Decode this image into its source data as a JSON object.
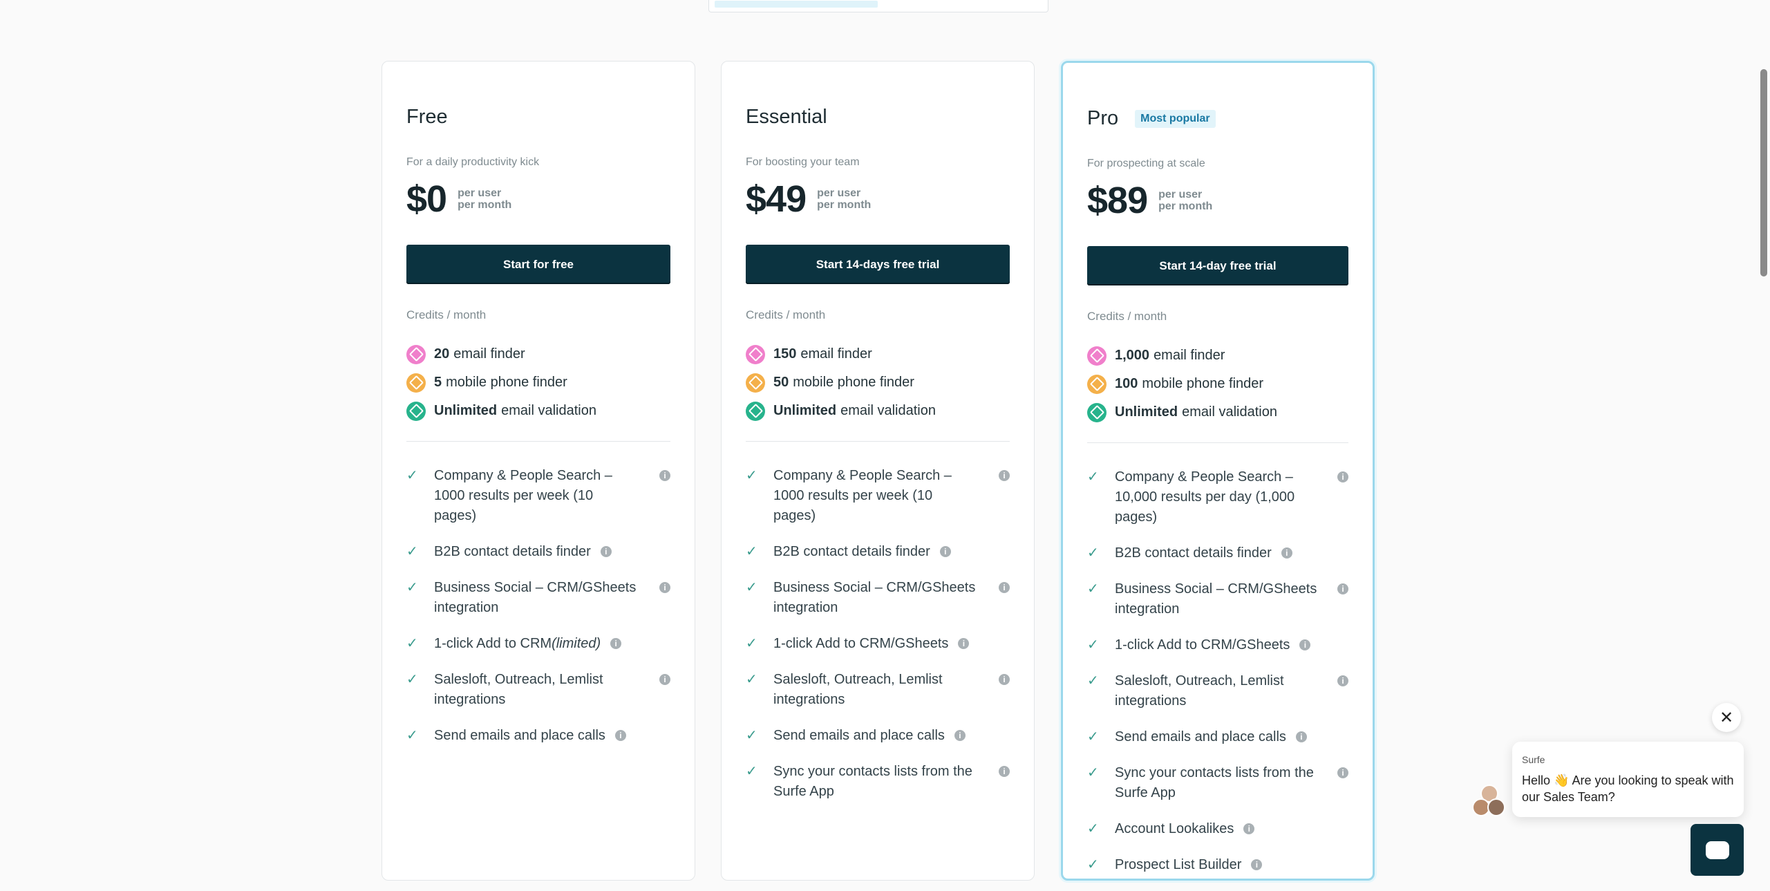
{
  "plans": [
    {
      "name": "Free",
      "tagline": "For a daily productivity kick",
      "price": "$0",
      "unit": [
        "per user",
        "per month"
      ],
      "cta": "Start for free",
      "credits_label": "Credits / month",
      "credits": [
        {
          "amount": "20",
          "label": "email finder"
        },
        {
          "amount": "5",
          "label": "mobile phone finder"
        },
        {
          "amount": "Unlimited",
          "label": "email validation"
        }
      ],
      "features": [
        {
          "text": "Company & People Search – 1000 results per week (10 pages)"
        },
        {
          "text": "B2B contact details finder"
        },
        {
          "text": "Business Social – CRM/GSheets integration"
        },
        {
          "text": "1-click Add to CRM",
          "emphasis": "(limited)"
        },
        {
          "text": "Salesloft, Outreach, Lemlist integrations"
        },
        {
          "text": "Send emails and place calls"
        }
      ]
    },
    {
      "name": "Essential",
      "tagline": "For boosting your team",
      "price": "$49",
      "unit": [
        "per user",
        "per month"
      ],
      "cta": "Start 14-days free trial",
      "credits_label": "Credits / month",
      "credits": [
        {
          "amount": "150",
          "label": "email finder"
        },
        {
          "amount": "50",
          "label": "mobile phone finder"
        },
        {
          "amount": "Unlimited",
          "label": "email validation"
        }
      ],
      "features": [
        {
          "text": "Company & People Search – 1000 results per week (10 pages)"
        },
        {
          "text": "B2B contact details finder"
        },
        {
          "text": "Business Social – CRM/GSheets integration"
        },
        {
          "text": "1-click Add to CRM/GSheets"
        },
        {
          "text": "Salesloft, Outreach, Lemlist integrations"
        },
        {
          "text": "Send emails and place calls"
        },
        {
          "text": "Sync your contacts lists from the Surfe App"
        }
      ]
    },
    {
      "name": "Pro",
      "badge": "Most popular",
      "tagline": "For prospecting at scale",
      "price": "$89",
      "unit": [
        "per user",
        "per month"
      ],
      "cta": "Start 14-day free trial",
      "credits_label": "Credits / month",
      "credits": [
        {
          "amount": "1,000",
          "label": "email finder"
        },
        {
          "amount": "100",
          "label": "mobile phone finder"
        },
        {
          "amount": "Unlimited",
          "label": "email validation"
        }
      ],
      "features": [
        {
          "text": "Company & People Search – 10,000 results per day (1,000 pages)"
        },
        {
          "text": "B2B contact details finder"
        },
        {
          "text": "Business Social – CRM/GSheets integration"
        },
        {
          "text": "1-click Add to CRM/GSheets"
        },
        {
          "text": "Salesloft, Outreach, Lemlist integrations"
        },
        {
          "text": "Send emails and place calls"
        },
        {
          "text": "Sync your contacts lists from the Surfe App"
        },
        {
          "text": "Account Lookalikes"
        },
        {
          "text": "Prospect List Builder"
        }
      ]
    }
  ],
  "chat": {
    "sender": "Surfe",
    "message": "Hello 👋 Are you looking to speak with our Sales Team?"
  }
}
